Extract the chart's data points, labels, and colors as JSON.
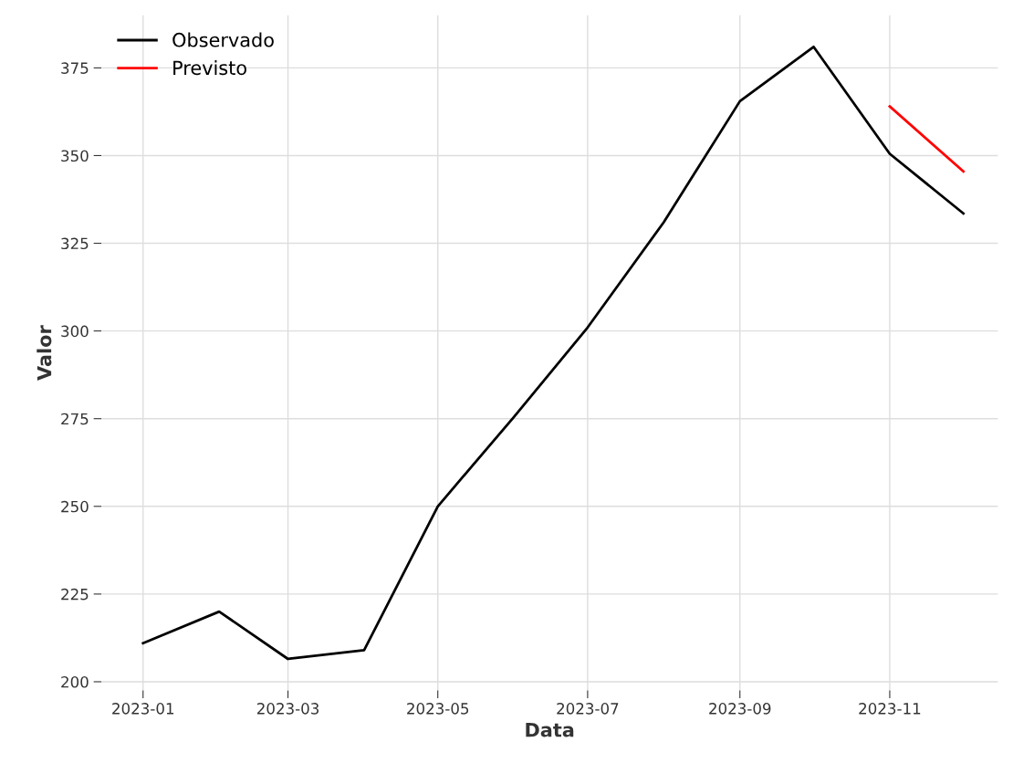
{
  "chart_data": {
    "type": "line",
    "xlabel": "Data",
    "ylabel": "Valor",
    "x": [
      "2023-01",
      "2023-02",
      "2023-03",
      "2023-04",
      "2023-05",
      "2023-06",
      "2023-07",
      "2023-08",
      "2023-09",
      "2023-10",
      "2023-11",
      "2023-12"
    ],
    "series": [
      {
        "name": "Observado",
        "color": "#000000",
        "values": [
          211,
          220,
          206.5,
          209,
          250,
          275.5,
          301,
          331,
          365.5,
          381,
          350.5,
          333.5
        ]
      },
      {
        "name": "Previsto",
        "color": "#ff0000",
        "x": [
          "2023-11",
          "2023-12"
        ],
        "values": [
          364,
          345.5
        ]
      }
    ],
    "xlim": [
      "2022-12-15",
      "2023-12-15"
    ],
    "xticks": [
      "2023-01",
      "2023-03",
      "2023-05",
      "2023-07",
      "2023-09",
      "2023-11"
    ],
    "ylim": [
      197.5,
      390
    ],
    "yticks": [
      200,
      225,
      250,
      275,
      300,
      325,
      350,
      375
    ],
    "grid": true,
    "legend": "top left",
    "line_style": "solid",
    "marker": "none"
  }
}
